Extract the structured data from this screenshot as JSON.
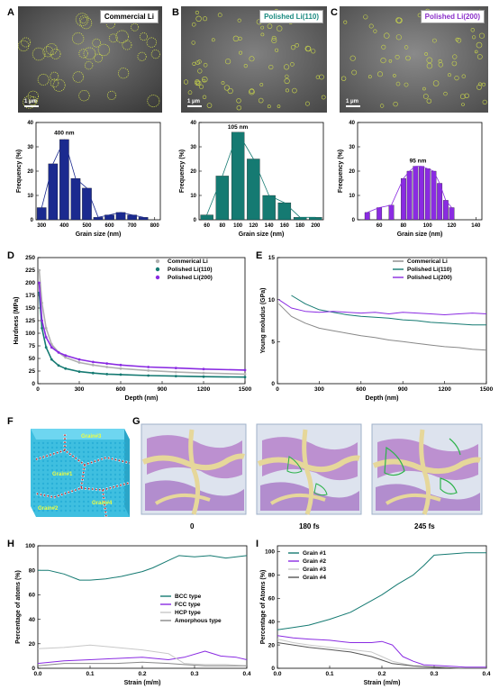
{
  "panels": {
    "A": {
      "letter": "A",
      "tag": "Commercial Li",
      "scale": "1 μm",
      "tag_color": "#000000"
    },
    "B": {
      "letter": "B",
      "tag": "Polished Li(110)",
      "scale": "1 μm",
      "tag_color": "#1a8a80"
    },
    "C": {
      "letter": "C",
      "tag": "Polished Li(200)",
      "scale": "1 μm",
      "tag_color": "#8b2fc9"
    },
    "D": {
      "letter": "D"
    },
    "E": {
      "letter": "E"
    },
    "F": {
      "letter": "F",
      "grain_labels": [
        "Grain#3",
        "Grain#1",
        "Grain#4",
        "Grain#2"
      ]
    },
    "G": {
      "letter": "G",
      "captions": [
        "0",
        "180 fs",
        "245 fs"
      ]
    },
    "H": {
      "letter": "H"
    },
    "I": {
      "letter": "I"
    }
  },
  "colors": {
    "navy": "#1b2a8f",
    "teal": "#157a72",
    "purple": "#8a2be2",
    "gray": "#888888",
    "lightgray": "#c8c8c8"
  },
  "chart_data": [
    {
      "id": "hist-a",
      "type": "bar",
      "color": "#1b2a8f",
      "x": [
        300,
        350,
        400,
        450,
        500,
        550,
        600,
        650,
        700,
        750
      ],
      "values": [
        5,
        23,
        33,
        17,
        13,
        1,
        2,
        3,
        2,
        1
      ],
      "xlim": [
        275,
        825
      ],
      "ylim": [
        0,
        40
      ],
      "xticks": [
        300,
        400,
        500,
        600,
        700,
        800
      ],
      "yticks": [
        0,
        10,
        20,
        30,
        40
      ],
      "xlabel": "Grain size (nm)",
      "ylabel": "Frequency (%)",
      "annotation": "400 nm",
      "annotation_x": 400,
      "annotation_y": 35
    },
    {
      "id": "hist-b",
      "type": "bar",
      "color": "#157a72",
      "x": [
        60,
        80,
        100,
        120,
        140,
        160,
        180,
        200
      ],
      "values": [
        2,
        18,
        36,
        25,
        10,
        7,
        1,
        1
      ],
      "xlim": [
        50,
        210
      ],
      "ylim": [
        0,
        40
      ],
      "xticks": [
        60,
        80,
        100,
        120,
        140,
        160,
        180,
        200
      ],
      "yticks": [
        0,
        10,
        20,
        30,
        40
      ],
      "xlabel": "Grain size (nm)",
      "ylabel": "Frequency (%)",
      "annotation": "105 nm",
      "annotation_x": 100,
      "annotation_y": 37.5
    },
    {
      "id": "hist-c",
      "type": "bar",
      "color": "#8a2be2",
      "x": [
        50,
        60,
        70,
        80,
        85,
        90,
        95,
        100,
        105,
        110,
        115,
        120
      ],
      "values": [
        3,
        5,
        6,
        17,
        20,
        22,
        22,
        21,
        20,
        15,
        8,
        5
      ],
      "xlim": [
        42,
        145
      ],
      "ylim": [
        0,
        40
      ],
      "xticks": [
        60,
        80,
        100,
        120,
        140
      ],
      "yticks": [
        0,
        10,
        20,
        30,
        40
      ],
      "xlabel": "Grain size (nm)",
      "ylabel": "Frequency (%)",
      "annotation": "95 nm",
      "annotation_x": 92,
      "annotation_y": 23.5
    },
    {
      "id": "hardness",
      "type": "line",
      "xlabel": "Depth (nm)",
      "ylabel": "Hardness (MPa)",
      "xlim": [
        0,
        1500
      ],
      "ylim": [
        0,
        250
      ],
      "xticks": [
        0,
        300,
        600,
        900,
        1200,
        1500
      ],
      "yticks": [
        0,
        25,
        50,
        75,
        100,
        125,
        150,
        175,
        200,
        225,
        250
      ],
      "legend": "top-right",
      "series": [
        {
          "name": "Commerical Li",
          "color": "#b0b0b0",
          "x": [
            10,
            30,
            60,
            100,
            150,
            200,
            300,
            400,
            500,
            600,
            800,
            1000,
            1200,
            1500
          ],
          "y": [
            225,
            160,
            110,
            78,
            62,
            52,
            42,
            37,
            33,
            30,
            26,
            23,
            21,
            19
          ]
        },
        {
          "name": "Polished Li(110)",
          "color": "#157a72",
          "x": [
            10,
            30,
            60,
            100,
            150,
            200,
            300,
            400,
            500,
            600,
            800,
            1000,
            1200,
            1500
          ],
          "y": [
            180,
            110,
            72,
            48,
            36,
            30,
            24,
            21,
            19,
            18,
            16,
            15,
            14,
            13
          ]
        },
        {
          "name": "Polished Li(200)",
          "color": "#8a2be2",
          "x": [
            10,
            30,
            60,
            100,
            150,
            200,
            300,
            400,
            500,
            600,
            800,
            1000,
            1200,
            1500
          ],
          "y": [
            200,
            125,
            92,
            72,
            62,
            56,
            48,
            43,
            40,
            37,
            33,
            31,
            29,
            27
          ]
        }
      ]
    },
    {
      "id": "modulus",
      "type": "line",
      "xlabel": "Depth (nm)",
      "ylabel": "Young moludus (GPa)",
      "xlim": [
        0,
        1500
      ],
      "ylim": [
        0,
        15
      ],
      "xticks": [
        0,
        300,
        600,
        900,
        1200,
        1500
      ],
      "yticks": [
        0,
        5,
        10,
        15
      ],
      "legend": "top-right",
      "series": [
        {
          "name": "Commerical Li",
          "color": "#888888",
          "x": [
            10,
            100,
            200,
            300,
            400,
            500,
            600,
            700,
            800,
            900,
            1000,
            1100,
            1200,
            1300,
            1400,
            1500
          ],
          "y": [
            9.5,
            8.0,
            7.2,
            6.6,
            6.3,
            6.0,
            5.7,
            5.5,
            5.2,
            5.0,
            4.8,
            4.6,
            4.4,
            4.3,
            4.1,
            4.0
          ]
        },
        {
          "name": "Polished Li(110)",
          "color": "#157a72",
          "x": [
            100,
            200,
            300,
            400,
            500,
            600,
            700,
            800,
            900,
            1000,
            1100,
            1200,
            1300,
            1400,
            1500
          ],
          "y": [
            10.5,
            9.5,
            8.8,
            8.5,
            8.2,
            8.0,
            7.9,
            7.8,
            7.6,
            7.5,
            7.3,
            7.2,
            7.1,
            7.0,
            7.0
          ]
        },
        {
          "name": "Polished Li(200)",
          "color": "#8a2be2",
          "x": [
            10,
            100,
            200,
            300,
            400,
            500,
            600,
            700,
            800,
            900,
            1000,
            1100,
            1200,
            1300,
            1400,
            1500
          ],
          "y": [
            10.0,
            9.0,
            8.6,
            8.5,
            8.6,
            8.5,
            8.4,
            8.5,
            8.3,
            8.5,
            8.4,
            8.3,
            8.2,
            8.3,
            8.4,
            8.3
          ]
        }
      ]
    },
    {
      "id": "phase",
      "type": "line",
      "xlabel": "Strain (m/m)",
      "ylabel": "Percentage of atoms (%)",
      "xlim": [
        0,
        0.4
      ],
      "ylim": [
        0,
        100
      ],
      "xticks": [
        0.0,
        0.1,
        0.2,
        0.3,
        0.4
      ],
      "yticks": [
        0,
        20,
        40,
        60,
        80,
        100
      ],
      "legend": "center-right",
      "series": [
        {
          "name": "BCC type",
          "color": "#157a72",
          "x": [
            0,
            0.02,
            0.05,
            0.08,
            0.1,
            0.13,
            0.16,
            0.2,
            0.22,
            0.25,
            0.27,
            0.3,
            0.33,
            0.36,
            0.4
          ],
          "y": [
            80,
            80,
            77,
            72,
            72,
            73,
            75,
            79,
            82,
            88,
            92,
            91,
            92,
            90,
            92
          ]
        },
        {
          "name": "FCC type",
          "color": "#8a2be2",
          "x": [
            0,
            0.05,
            0.1,
            0.15,
            0.2,
            0.25,
            0.28,
            0.32,
            0.35,
            0.38,
            0.4
          ],
          "y": [
            4,
            6,
            7,
            8,
            9,
            7,
            9,
            14,
            10,
            9,
            7
          ]
        },
        {
          "name": "HCP type",
          "color": "#c8c8c8",
          "x": [
            0,
            0.05,
            0.1,
            0.15,
            0.2,
            0.25,
            0.28,
            0.32,
            0.36,
            0.4
          ],
          "y": [
            16,
            17,
            19,
            17,
            15,
            12,
            4,
            3,
            3,
            2
          ]
        },
        {
          "name": "Amorphous type",
          "color": "#888888",
          "x": [
            0,
            0.05,
            0.1,
            0.15,
            0.2,
            0.25,
            0.28,
            0.32,
            0.36,
            0.4
          ],
          "y": [
            2,
            4,
            4,
            4,
            5,
            4,
            3,
            2,
            2,
            2
          ]
        }
      ]
    },
    {
      "id": "grains",
      "type": "line",
      "xlabel": "Strain (m/m)",
      "ylabel": "Percentage of Atoms (%)",
      "xlim": [
        0,
        0.4
      ],
      "ylim": [
        0,
        105
      ],
      "xticks": [
        0.0,
        0.1,
        0.2,
        0.3,
        0.4
      ],
      "yticks": [
        0,
        20,
        40,
        60,
        80,
        100
      ],
      "legend": "top-left",
      "series": [
        {
          "name": "Grain #1",
          "color": "#157a72",
          "x": [
            0,
            0.03,
            0.06,
            0.1,
            0.14,
            0.18,
            0.2,
            0.23,
            0.26,
            0.28,
            0.3,
            0.33,
            0.36,
            0.4
          ],
          "y": [
            33,
            35,
            37,
            42,
            48,
            58,
            63,
            72,
            80,
            88,
            97,
            98,
            99,
            99
          ]
        },
        {
          "name": "Grain #2",
          "color": "#8a2be2",
          "x": [
            0,
            0.03,
            0.06,
            0.1,
            0.14,
            0.18,
            0.2,
            0.22,
            0.24,
            0.26,
            0.28,
            0.32,
            0.36,
            0.4
          ],
          "y": [
            28,
            26,
            25,
            24,
            22,
            22,
            23,
            20,
            10,
            6,
            3,
            2,
            1,
            1
          ]
        },
        {
          "name": "Grain #3",
          "color": "#c8c8c8",
          "x": [
            0,
            0.03,
            0.06,
            0.1,
            0.14,
            0.18,
            0.2,
            0.22,
            0.26,
            0.3,
            0.35,
            0.4
          ],
          "y": [
            25,
            22,
            20,
            18,
            16,
            14,
            10,
            6,
            2,
            1,
            0,
            0
          ]
        },
        {
          "name": "Grain #4",
          "color": "#555555",
          "x": [
            0,
            0.03,
            0.06,
            0.1,
            0.14,
            0.18,
            0.2,
            0.22,
            0.26,
            0.3,
            0.35,
            0.4
          ],
          "y": [
            22,
            20,
            18,
            16,
            14,
            10,
            7,
            4,
            2,
            1,
            0,
            0
          ]
        }
      ]
    }
  ]
}
